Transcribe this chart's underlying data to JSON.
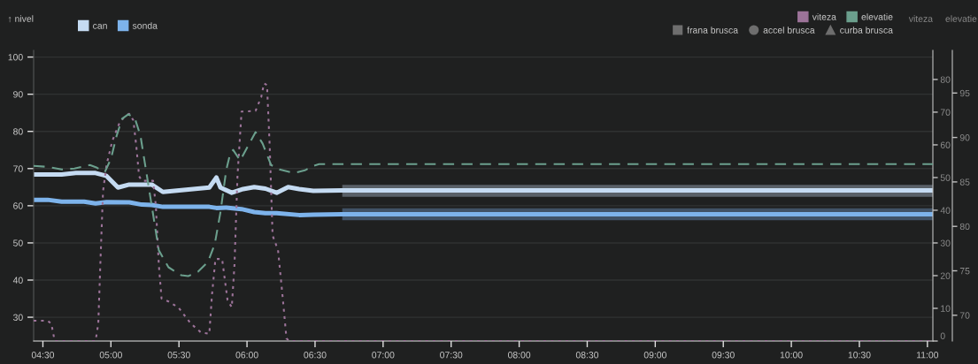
{
  "chart_data": {
    "type": "line",
    "ylabel": "↑ nivel",
    "y2label": "viteza",
    "y3label": "elevatie",
    "xlim": [
      4.432,
      11.04
    ],
    "xticks": [
      {
        "value": 4.5,
        "label": "04:30"
      },
      {
        "value": 5.0,
        "label": "05:00"
      },
      {
        "value": 5.5,
        "label": "05:30"
      },
      {
        "value": 6.0,
        "label": "06:00"
      },
      {
        "value": 6.5,
        "label": "06:30"
      },
      {
        "value": 7.0,
        "label": "07:00"
      },
      {
        "value": 7.5,
        "label": "07:30"
      },
      {
        "value": 8.0,
        "label": "08:00"
      },
      {
        "value": 8.5,
        "label": "08:30"
      },
      {
        "value": 9.0,
        "label": "09:00"
      },
      {
        "value": 9.5,
        "label": "09:30"
      },
      {
        "value": 10.0,
        "label": "10:00"
      },
      {
        "value": 10.5,
        "label": "10:30"
      },
      {
        "value": 11.0,
        "label": "11:00"
      }
    ],
    "ylim": [
      23.6,
      101.8
    ],
    "yticks": [
      30,
      40,
      50,
      60,
      70,
      80,
      90,
      100
    ],
    "y2lim": [
      0,
      88.9
    ],
    "y2ticks": [
      0,
      10,
      20,
      30,
      40,
      50,
      60,
      70,
      80
    ],
    "y3lim": [
      67.1,
      99.8
    ],
    "y3ticks": [
      70,
      75,
      80,
      85,
      90,
      95
    ],
    "grid": "y",
    "legend": "top",
    "series": [
      {
        "name": "can",
        "color": "#c5dbf2",
        "line_style": "solid",
        "x": [
          4.432,
          4.638,
          4.742,
          4.887,
          4.968,
          5.052,
          5.135,
          5.3,
          5.382,
          5.723,
          5.775,
          5.805,
          5.888,
          5.972,
          6.053,
          6.135,
          6.218,
          6.302,
          6.383,
          6.487,
          6.7,
          11.04
        ],
        "values": [
          68.4,
          68.4,
          68.8,
          68.8,
          68.0,
          64.9,
          65.7,
          65.7,
          63.7,
          64.9,
          67.6,
          64.9,
          63.5,
          64.5,
          65.0,
          64.6,
          63.5,
          65.0,
          64.5,
          64.0,
          64.1,
          64.1
        ],
        "lower": [
          null,
          null,
          null,
          null,
          null,
          null,
          null,
          null,
          null,
          null,
          null,
          null,
          null,
          null,
          null,
          null,
          null,
          null,
          null,
          null,
          62.4,
          62.4
        ],
        "upper": [
          null,
          null,
          null,
          null,
          null,
          null,
          null,
          null,
          null,
          null,
          null,
          null,
          null,
          null,
          null,
          null,
          null,
          null,
          null,
          null,
          65.6,
          65.6
        ]
      },
      {
        "name": "sonda",
        "color": "#7db3eb",
        "line_style": "solid",
        "x": [
          4.432,
          4.535,
          4.638,
          4.803,
          4.887,
          4.968,
          5.135,
          5.227,
          5.3,
          5.382,
          5.723,
          5.775,
          5.847,
          5.96,
          6.053,
          6.135,
          6.218,
          6.383,
          6.487,
          6.7,
          11.04
        ],
        "values": [
          61.6,
          61.6,
          61.1,
          61.1,
          60.6,
          61.0,
          60.9,
          60.3,
          60.2,
          59.7,
          59.7,
          59.4,
          59.5,
          59.1,
          58.3,
          58.0,
          58.0,
          57.5,
          57.6,
          57.7,
          57.7
        ],
        "lower": [
          null,
          null,
          null,
          null,
          null,
          null,
          null,
          null,
          null,
          null,
          null,
          null,
          null,
          null,
          null,
          null,
          null,
          null,
          null,
          56.1,
          56.1
        ],
        "upper": [
          null,
          null,
          null,
          null,
          null,
          null,
          null,
          null,
          null,
          null,
          null,
          null,
          null,
          null,
          null,
          null,
          null,
          null,
          null,
          59.3,
          59.3
        ]
      },
      {
        "name": "viteza",
        "color": "#9c7399",
        "line_style": "dotted",
        "axis": "y2",
        "x": [
          4.432,
          4.535,
          4.562,
          4.587,
          4.887,
          4.907,
          4.922,
          4.942,
          4.968,
          5.01,
          5.062,
          5.103,
          5.135,
          5.165,
          5.187,
          5.207,
          5.227,
          5.31,
          5.33,
          5.352,
          5.372,
          5.423,
          5.495,
          5.588,
          5.662,
          5.723,
          5.743,
          5.768,
          5.817,
          5.837,
          5.857,
          5.888,
          5.908,
          5.93,
          5.96,
          5.992,
          6.063,
          6.105,
          6.125,
          6.147,
          6.167,
          6.188,
          6.228,
          6.26,
          6.29,
          6.312,
          11.04
        ],
        "values": [
          6.2,
          6.2,
          5.3,
          0,
          0,
          5.3,
          23.3,
          45.8,
          53.9,
          61.2,
          66.6,
          68.8,
          69.5,
          67.5,
          59.4,
          50.4,
          49.0,
          49.0,
          41.4,
          23.3,
          13.0,
          12.1,
          10.3,
          5.3,
          2.6,
          2.2,
          14.3,
          25.1,
          25.1,
          18.8,
          12.5,
          10.3,
          23.3,
          50.4,
          70.2,
          70.2,
          70.4,
          74.7,
          78.8,
          78.3,
          59.4,
          32.3,
          27.8,
          14.3,
          0.8,
          0,
          0
        ]
      },
      {
        "name": "elevatie",
        "color": "#6b9f8d",
        "line_style": "dashed",
        "axis": "y3",
        "x": [
          4.432,
          4.535,
          4.638,
          4.732,
          4.845,
          4.897,
          4.955,
          5.0,
          5.042,
          5.082,
          5.128,
          5.175,
          5.217,
          5.258,
          5.3,
          5.352,
          5.423,
          5.517,
          5.568,
          5.64,
          5.713,
          5.763,
          5.805,
          5.847,
          5.878,
          5.898,
          5.95,
          6.002,
          6.063,
          6.115,
          6.177,
          6.238,
          6.343,
          6.425,
          6.487,
          6.53,
          11.04
        ],
        "values": [
          86.8,
          86.7,
          86.4,
          86.5,
          86.9,
          86.6,
          86.1,
          87.6,
          90.2,
          92.1,
          92.6,
          92.2,
          90.2,
          86.3,
          82.3,
          77.3,
          75.4,
          74.5,
          74.4,
          74.9,
          76.0,
          78.0,
          81.6,
          86.3,
          88.3,
          88.6,
          87.4,
          88.9,
          90.6,
          89.3,
          86.9,
          86.4,
          86.0,
          86.3,
          86.8,
          87.0,
          87.0
        ]
      },
      {
        "name": "frana brusca",
        "type": "scatter",
        "marker": "square",
        "color": "#6e6e6e"
      },
      {
        "name": "accel brusca",
        "type": "scatter",
        "marker": "circle",
        "color": "#6e6e6e"
      },
      {
        "name": "curba brusca",
        "type": "scatter",
        "marker": "triangle",
        "color": "#6e6e6e"
      }
    ]
  }
}
